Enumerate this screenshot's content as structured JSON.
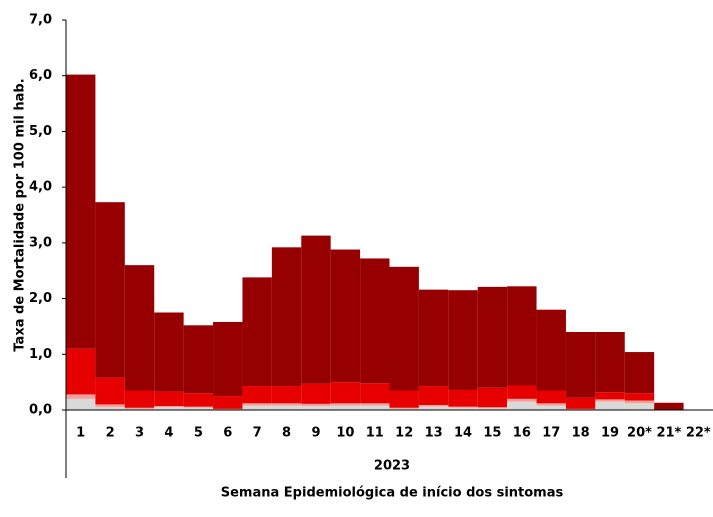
{
  "chart_data": {
    "type": "bar",
    "stacked": true,
    "categories": [
      "1",
      "2",
      "3",
      "4",
      "5",
      "6",
      "7",
      "8",
      "9",
      "10",
      "11",
      "12",
      "13",
      "14",
      "15",
      "16",
      "17",
      "18",
      "19",
      "20*",
      "21*",
      "22*"
    ],
    "x_group_label": "2023",
    "x_label": "Semana Epidemiológica de início dos sintomas",
    "y_label": "Taxa de Mortalidade por 100 mil hab.",
    "ylim": [
      0,
      7
    ],
    "yticks": [
      {
        "value": 0,
        "label": "0,0"
      },
      {
        "value": 1,
        "label": "1,0"
      },
      {
        "value": 2,
        "label": "2,0"
      },
      {
        "value": 3,
        "label": "3,0"
      },
      {
        "value": 4,
        "label": "4,0"
      },
      {
        "value": 5,
        "label": "5,0"
      },
      {
        "value": 6,
        "label": "6,0"
      },
      {
        "value": 7,
        "label": "7,0"
      }
    ],
    "series": [
      {
        "color": "#d9d9d9",
        "values": [
          0.2,
          0.05,
          0.02,
          0.05,
          0.04,
          0,
          0.08,
          0.08,
          0.07,
          0.08,
          0.08,
          0.02,
          0.06,
          0.04,
          0.03,
          0.15,
          0.08,
          0,
          0.15,
          0.12,
          0,
          0
        ]
      },
      {
        "color": "#f4a09a",
        "values": [
          0.08,
          0.05,
          0.02,
          0.02,
          0.02,
          0.02,
          0.04,
          0.04,
          0.04,
          0.04,
          0.04,
          0.02,
          0.03,
          0.02,
          0.02,
          0.05,
          0.04,
          0.02,
          0.04,
          0.05,
          0,
          0
        ]
      },
      {
        "color": "#e60000",
        "values": [
          0.82,
          0.48,
          0.31,
          0.26,
          0.24,
          0.23,
          0.31,
          0.31,
          0.36,
          0.38,
          0.36,
          0.31,
          0.34,
          0.3,
          0.35,
          0.24,
          0.23,
          0.2,
          0.13,
          0.13,
          0,
          0
        ]
      },
      {
        "color": "#960000",
        "values": [
          4.92,
          3.15,
          2.25,
          1.42,
          1.22,
          1.33,
          1.95,
          2.49,
          2.66,
          2.38,
          2.24,
          2.22,
          1.73,
          1.79,
          1.81,
          1.78,
          1.45,
          1.18,
          1.08,
          0.74,
          0.13,
          0
        ]
      }
    ]
  }
}
